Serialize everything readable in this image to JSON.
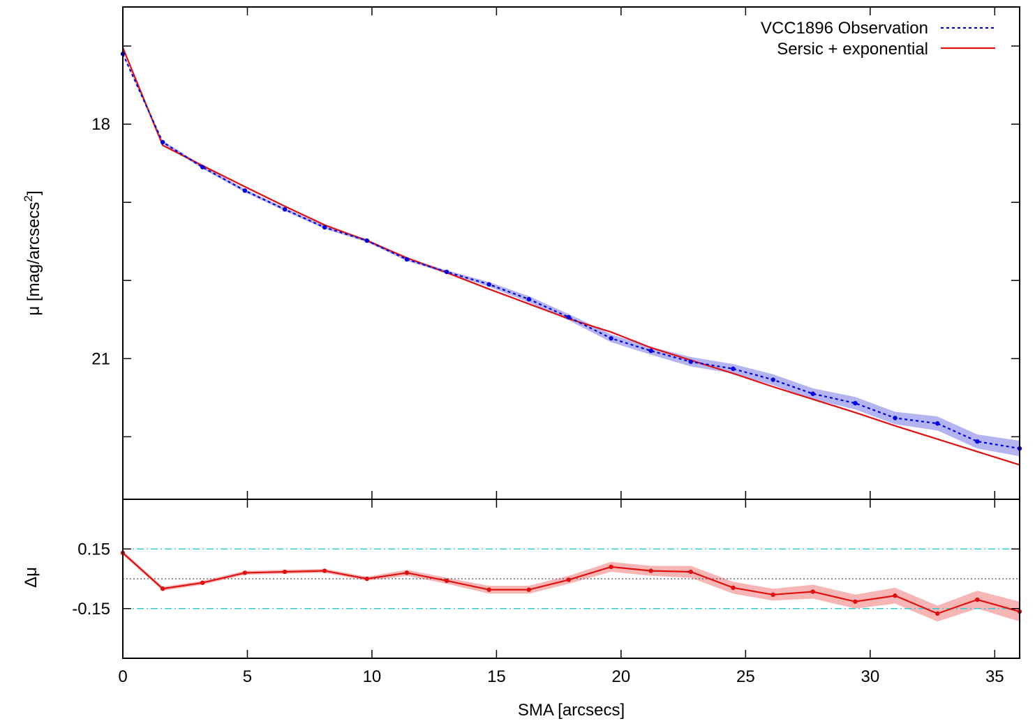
{
  "colors": {
    "observation": "#0000e0",
    "observation_band": "#b4b4f0",
    "fit": "#e01010",
    "residual_band": "#f7b6b6",
    "threshold": "#33cccc",
    "zero_line": "#555555"
  },
  "chart_data": [
    {
      "type": "line",
      "panel": "top",
      "xlim": [
        0,
        36
      ],
      "ylim": [
        22.8,
        16.5
      ],
      "y_inverted": true,
      "grid": false,
      "legend_position": "top-right",
      "xlabel": "",
      "ylabel_main": "μ [mag/arcsecs",
      "ylabel_sup": "2",
      "ylabel_tail": "]",
      "y_ticks": [
        {
          "value": 16.0,
          "label": ""
        },
        {
          "value": 17,
          "label": ""
        },
        {
          "value": 18,
          "label": "18"
        },
        {
          "value": 19,
          "label": ""
        },
        {
          "value": 20,
          "label": ""
        },
        {
          "value": 21,
          "label": "21"
        },
        {
          "value": 22,
          "label": ""
        }
      ],
      "x_ticks": [
        0,
        5,
        10,
        15,
        20,
        25,
        30,
        35
      ],
      "series": [
        {
          "name": "VCC1896 Observation",
          "style": "dotted-markers",
          "x": [
            0,
            1.6,
            3.2,
            4.9,
            6.5,
            8.1,
            9.8,
            11.4,
            13.0,
            14.7,
            16.3,
            17.9,
            19.6,
            21.2,
            22.8,
            24.5,
            26.1,
            27.7,
            29.4,
            31.0,
            32.7,
            34.3,
            36.0
          ],
          "y": [
            17.1,
            18.23,
            18.55,
            18.85,
            19.09,
            19.32,
            19.49,
            19.73,
            19.89,
            20.05,
            20.24,
            20.47,
            20.74,
            20.9,
            21.04,
            21.13,
            21.27,
            21.45,
            21.57,
            21.76,
            21.83,
            22.06,
            22.15
          ],
          "err": [
            0.01,
            0.02,
            0.02,
            0.02,
            0.02,
            0.02,
            0.02,
            0.02,
            0.02,
            0.03,
            0.04,
            0.04,
            0.05,
            0.05,
            0.06,
            0.06,
            0.07,
            0.07,
            0.08,
            0.08,
            0.09,
            0.09,
            0.1
          ]
        },
        {
          "name": "Sersic + exponential",
          "style": "solid",
          "x": [
            0,
            1.6,
            3.2,
            4.9,
            6.5,
            8.1,
            9.8,
            11.4,
            13.0,
            14.7,
            16.3,
            17.9,
            19.6,
            21.2,
            22.8,
            24.5,
            26.1,
            27.7,
            29.4,
            31.0,
            32.7,
            34.3,
            36.0
          ],
          "y": [
            17.02,
            18.27,
            18.53,
            18.8,
            19.05,
            19.29,
            19.49,
            19.71,
            19.9,
            20.11,
            20.3,
            20.49,
            20.66,
            20.86,
            21.02,
            21.19,
            21.36,
            21.52,
            21.69,
            21.86,
            22.03,
            22.19,
            22.36
          ]
        }
      ]
    },
    {
      "type": "line",
      "panel": "bottom",
      "xlim": [
        0,
        36
      ],
      "ylim": [
        -0.4,
        0.4
      ],
      "grid": false,
      "xlabel": "SMA [arcsecs]",
      "ylabel": "Δμ",
      "y_ticks": [
        {
          "value": 0.15,
          "label": "0.15"
        },
        {
          "value": -0.15,
          "label": "-0.15"
        }
      ],
      "x_ticks": [
        {
          "value": 0,
          "label": "0"
        },
        {
          "value": 5,
          "label": "5"
        },
        {
          "value": 10,
          "label": "10"
        },
        {
          "value": 15,
          "label": "15"
        },
        {
          "value": 20,
          "label": "20"
        },
        {
          "value": 25,
          "label": "25"
        },
        {
          "value": 30,
          "label": "30"
        },
        {
          "value": 35,
          "label": "35"
        }
      ],
      "thresholds": [
        0.15,
        -0.15
      ],
      "zero_line": 0,
      "series": [
        {
          "name": "",
          "style": "solid-markers",
          "x": [
            0,
            1.6,
            3.2,
            4.9,
            6.5,
            8.1,
            9.8,
            11.4,
            13.0,
            14.7,
            16.3,
            17.9,
            19.6,
            21.2,
            22.8,
            24.5,
            26.1,
            27.7,
            29.4,
            31.0,
            32.7,
            34.3,
            36.0
          ],
          "y": [
            0.13,
            -0.05,
            -0.02,
            0.03,
            0.035,
            0.04,
            0.0,
            0.03,
            -0.01,
            -0.055,
            -0.055,
            -0.005,
            0.06,
            0.04,
            0.035,
            -0.045,
            -0.08,
            -0.065,
            -0.115,
            -0.085,
            -0.175,
            -0.105,
            -0.165
          ],
          "err": [
            0.01,
            0.01,
            0.01,
            0.01,
            0.01,
            0.01,
            0.01,
            0.015,
            0.015,
            0.02,
            0.02,
            0.02,
            0.025,
            0.025,
            0.03,
            0.03,
            0.03,
            0.035,
            0.035,
            0.04,
            0.04,
            0.045,
            0.05
          ]
        }
      ]
    }
  ]
}
